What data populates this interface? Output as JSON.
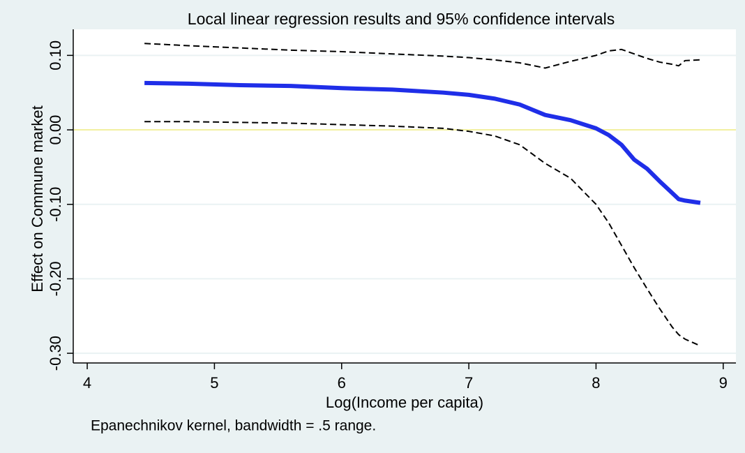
{
  "chart_data": {
    "type": "line",
    "title": "Local linear regression results and 95% confidence intervals",
    "x_label": "Log(Income per capita)",
    "y_label": "Effect on Commune market",
    "note": "Epanechnikov kernel, bandwidth = .5 range.",
    "x": [
      4.45,
      4.8,
      5.2,
      5.6,
      6.0,
      6.4,
      6.8,
      7.0,
      7.2,
      7.4,
      7.6,
      7.8,
      8.0,
      8.1,
      8.2,
      8.3,
      8.4,
      8.5,
      8.6,
      8.65,
      8.7,
      8.82
    ],
    "series": [
      {
        "color": "#000000",
        "dash": true,
        "width": 2,
        "values": [
          0.116,
          0.113,
          0.11,
          0.107,
          0.105,
          0.102,
          0.099,
          0.097,
          0.094,
          0.09,
          0.083,
          0.092,
          0.1,
          0.106,
          0.108,
          0.102,
          0.096,
          0.091,
          0.088,
          0.086,
          0.093,
          0.094
        ]
      },
      {
        "color": "#1f2ee8",
        "dash": false,
        "width": 6,
        "values": [
          0.063,
          0.062,
          0.06,
          0.059,
          0.056,
          0.054,
          0.05,
          0.047,
          0.042,
          0.034,
          0.02,
          0.013,
          0.002,
          -0.007,
          -0.02,
          -0.04,
          -0.052,
          -0.069,
          -0.085,
          -0.093,
          -0.095,
          -0.098
        ]
      },
      {
        "color": "#000000",
        "dash": true,
        "width": 2,
        "values": [
          0.011,
          0.011,
          0.01,
          0.009,
          0.007,
          0.005,
          0.002,
          -0.002,
          -0.008,
          -0.02,
          -0.045,
          -0.065,
          -0.1,
          -0.125,
          -0.155,
          -0.185,
          -0.213,
          -0.24,
          -0.265,
          -0.275,
          -0.281,
          -0.29
        ]
      }
    ],
    "xlim": [
      3.89,
      9.1
    ],
    "ylim": [
      -0.313,
      0.135
    ],
    "xticks": [
      4,
      5,
      6,
      7,
      8,
      9
    ],
    "yticks": [
      {
        "value": 0.1,
        "label": "0.10"
      },
      {
        "value": 0,
        "label": "0.00"
      },
      {
        "value": -0.1,
        "label": "-0.10"
      },
      {
        "value": -0.2,
        "label": "-0.20"
      },
      {
        "value": -0.3,
        "label": "-0.30"
      }
    ],
    "grid": true,
    "grid_color": "#eaf2f3",
    "reference_line": {
      "value": 0,
      "color": "#f2f0a0"
    }
  }
}
